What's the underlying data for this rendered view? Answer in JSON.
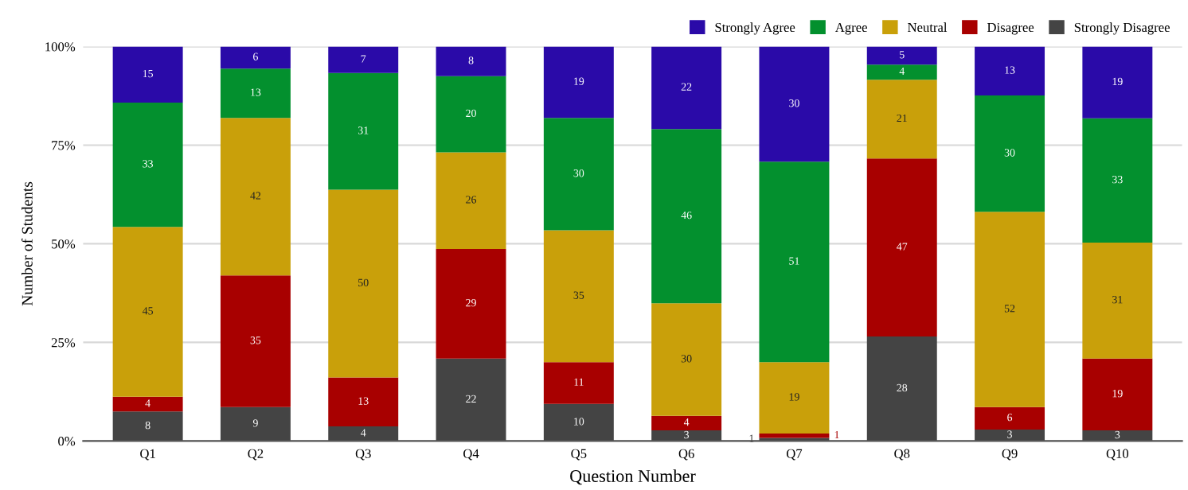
{
  "chart_data": {
    "type": "bar",
    "stacked": true,
    "xlabel": "Question Number",
    "ylabel": "Number of Students",
    "categories": [
      "Q1",
      "Q2",
      "Q3",
      "Q4",
      "Q5",
      "Q6",
      "Q7",
      "Q8",
      "Q9",
      "Q10"
    ],
    "series": [
      {
        "name": "Strongly Disagree",
        "color": "#444444",
        "values": [
          7.5,
          8.6,
          3.7,
          20.9,
          9.4,
          2.7,
          0.8,
          26.5,
          2.9,
          2.7
        ]
      },
      {
        "name": "Disagree",
        "color": "#a80000",
        "values": [
          3.7,
          33.4,
          12.4,
          27.8,
          10.6,
          3.7,
          1.1,
          45.1,
          5.7,
          18.2
        ]
      },
      {
        "name": "Neutral",
        "color": "#c9a00a",
        "values": [
          43.1,
          39.9,
          47.6,
          24.5,
          33.4,
          28.5,
          18.1,
          20.0,
          49.5,
          29.4
        ]
      },
      {
        "name": "Agree",
        "color": "#03902e",
        "values": [
          31.5,
          12.5,
          29.6,
          19.3,
          28.5,
          44.2,
          50.8,
          3.8,
          29.5,
          31.5
        ]
      },
      {
        "name": "Strongly Agree",
        "color": "#2a0aa8",
        "values": [
          14.2,
          5.6,
          6.7,
          7.5,
          18.1,
          20.9,
          29.2,
          4.6,
          12.4,
          18.2
        ]
      }
    ],
    "annotations": [
      "8",
      "4",
      "45",
      "33",
      "15",
      "9",
      "35",
      "42",
      "13",
      "6",
      "4",
      "13",
      "50",
      "31",
      "7",
      "22",
      "29",
      "26",
      "20",
      "8",
      "10",
      "11",
      "35",
      "30",
      "19",
      "3",
      "4",
      "30",
      "46",
      "22",
      "1",
      "1",
      "19",
      "51",
      "30",
      "28",
      "47",
      "21",
      "4",
      "5",
      "3",
      "6",
      "52",
      "30",
      "13",
      "3",
      "19",
      "31",
      "33",
      "19"
    ],
    "ylim": [
      0,
      100
    ],
    "yticks": [
      {
        "value": 0,
        "label": "0%"
      },
      {
        "value": 25,
        "label": "25%"
      },
      {
        "value": 50,
        "label": "50%"
      },
      {
        "value": 75,
        "label": "75%"
      },
      {
        "value": 100,
        "label": "100%"
      }
    ],
    "grid": "y",
    "legend": "top right"
  }
}
